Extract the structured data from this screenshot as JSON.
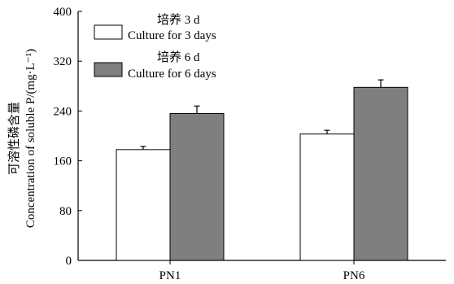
{
  "chart_data": {
    "type": "bar",
    "categories": [
      "PN1",
      "PN6"
    ],
    "series": [
      {
        "name": "培养 3 d",
        "name_en": "Culture for 3 days",
        "values": [
          178,
          203
        ],
        "errors": [
          5,
          6
        ],
        "fill": "#ffffff"
      },
      {
        "name": "培养 6 d",
        "name_en": "Culture for 6 days",
        "values": [
          236,
          278
        ],
        "errors": [
          12,
          12
        ],
        "fill": "#7f7f7f"
      }
    ],
    "title": "",
    "xlabel": "",
    "ylabel_cn": "可溶性磷含量",
    "ylabel_en": "Concentration of soluble P/(mg·L⁻¹)",
    "ylim": [
      0,
      400
    ],
    "yticks": [
      0,
      80,
      160,
      240,
      320,
      400
    ],
    "grid": false,
    "legend_position": "top-left"
  }
}
